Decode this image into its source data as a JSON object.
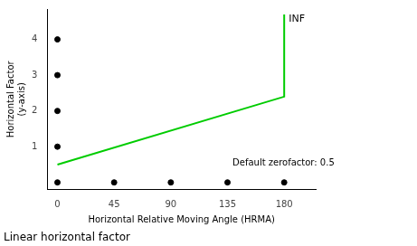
{
  "chart_data": {
    "type": "line",
    "title": "Linear horizontal factor",
    "xlabel": "Horizontal Relative Moving Angle (HRMA)",
    "ylabel": "Horizontal Factor\n(y-axis)",
    "xlim": [
      -8,
      205
    ],
    "ylim": [
      -0.2,
      4.85
    ],
    "xticks": [
      0,
      45,
      90,
      135,
      180
    ],
    "yticks": [
      1,
      2,
      3,
      4
    ],
    "grid": false,
    "series": [
      {
        "type": "line",
        "color": "#00cc00",
        "line_style": "solid",
        "x": [
          0,
          180,
          180
        ],
        "values": [
          0.5,
          2.4,
          4.7
        ]
      },
      {
        "type": "scatter",
        "color": "black",
        "marker": "circle",
        "x": [
          0,
          0,
          0,
          0,
          0,
          45,
          90,
          135,
          180
        ],
        "values": [
          0,
          1,
          2,
          3,
          4,
          0,
          0,
          0,
          0
        ]
      }
    ],
    "annotations": [
      "INF",
      "Default zerofactor: 0.5"
    ]
  }
}
